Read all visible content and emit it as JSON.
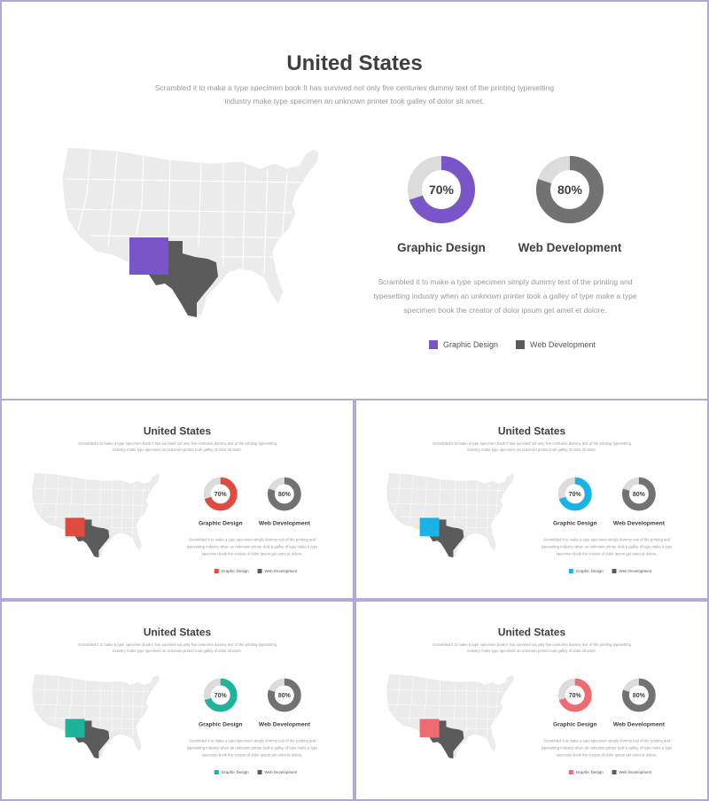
{
  "slides": [
    {
      "title": "United States",
      "subtitle_line1": "Scrambled it to make a type specimen book It has survived  not only five  centuries  dummy text of the printing typesetting",
      "subtitle_line2": "industry make type specimen an unknown printer took galley of dolor sit amet.",
      "accent": "#7a55c8",
      "charts": [
        {
          "value": 70,
          "text": "70%",
          "label": "Graphic Design"
        },
        {
          "value": 80,
          "text": "80%",
          "label": "Web Development"
        }
      ],
      "desc_line1": "Scrambled it to make a type specimen simply dummy text of the printing and",
      "desc_line2": "typesetting industry when an unknown printer took a galley of type make a type",
      "desc_line3": "specimen book the creator of dolor ipsum get amet et dolore.",
      "legend": [
        "Graphic Design",
        "Web Development"
      ]
    },
    {
      "title": "United States",
      "subtitle_line1": "Scrambled it to make a type specimen book It has survived  not only five  centuries  dummy text of the printing typesetting",
      "subtitle_line2": "industry make type specimen an unknown printer took galley of dolor sit amet.",
      "accent": "#e04a3f",
      "charts": [
        {
          "value": 70,
          "text": "70%",
          "label": "Graphic Design"
        },
        {
          "value": 80,
          "text": "80%",
          "label": "Web Development"
        }
      ],
      "desc_line1": "Scrambled it to make a type specimen simply dummy text of the printing and",
      "desc_line2": "typesetting industry when an unknown printer took a galley of type make a type",
      "desc_line3": "specimen book the creator of dolor ipsum get amet et dolore.",
      "legend": [
        "Graphic Design",
        "Web Development"
      ]
    },
    {
      "title": "United States",
      "subtitle_line1": "Scrambled it to make a type specimen book It has survived  not only five  centuries  dummy text of the printing typesetting",
      "subtitle_line2": "industry make type specimen an unknown printer took galley of dolor sit amet.",
      "accent": "#1ab3e8",
      "charts": [
        {
          "value": 70,
          "text": "70%",
          "label": "Graphic Design"
        },
        {
          "value": 80,
          "text": "80%",
          "label": "Web Development"
        }
      ],
      "desc_line1": "Scrambled it to make a type specimen simply dummy text of the printing and",
      "desc_line2": "typesetting industry when an unknown printer took a galley of type make a type",
      "desc_line3": "specimen book the creator of dolor ipsum get amet et dolore.",
      "legend": [
        "Graphic Design",
        "Web Development"
      ]
    },
    {
      "title": "United States",
      "subtitle_line1": "Scrambled it to make a type specimen book It has survived  not only five  centuries  dummy text of the printing typesetting",
      "subtitle_line2": "industry make type specimen an unknown printer took galley of dolor sit amet.",
      "accent": "#1fb39b",
      "charts": [
        {
          "value": 70,
          "text": "70%",
          "label": "Graphic Design"
        },
        {
          "value": 80,
          "text": "80%",
          "label": "Web Development"
        }
      ],
      "desc_line1": "Scrambled it to make a type specimen simply dummy text of the printing and",
      "desc_line2": "typesetting industry when an unknown printer took a galley of type make a type",
      "desc_line3": "specimen book the creator of dolor ipsum get amet et dolore.",
      "legend": [
        "Graphic Design",
        "Web Development"
      ]
    },
    {
      "title": "United States",
      "subtitle_line1": "Scrambled it to make a type specimen book It has survived  not only five  centuries  dummy text of the printing typesetting",
      "subtitle_line2": "industry make type specimen an unknown printer took galley of dolor sit amet.",
      "accent": "#ee6b72",
      "charts": [
        {
          "value": 70,
          "text": "70%",
          "label": "Graphic Design"
        },
        {
          "value": 80,
          "text": "80%",
          "label": "Web Development"
        }
      ],
      "desc_line1": "Scrambled it to make a type specimen simply dummy text of the printing and",
      "desc_line2": "typesetting industry when an unknown printer took a galley of type make a type",
      "desc_line3": "specimen book the creator of dolor ipsum get amet et dolore.",
      "legend": [
        "Graphic Design",
        "Web Development"
      ]
    }
  ],
  "colors": {
    "dark": "#5b5b5b",
    "map_base": "#ebebeb",
    "map_line": "#ffffff",
    "track": "#dcdcdc",
    "web": "#727272"
  }
}
